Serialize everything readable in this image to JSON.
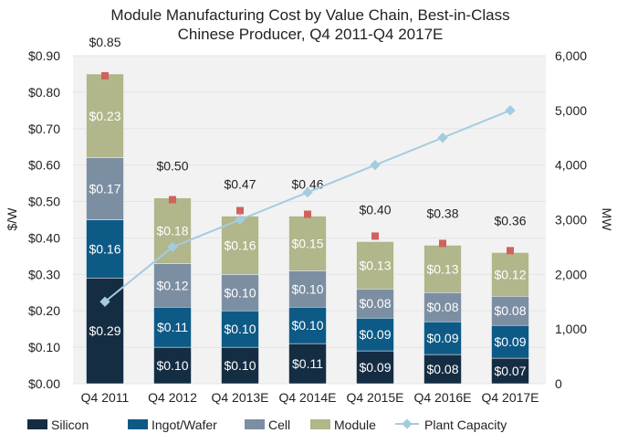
{
  "chart_data": {
    "type": "bar",
    "stacked": true,
    "title": "Module Manufacturing Cost by Value Chain, Best-in-Class Chinese Producer, Q4 2011-Q4 2017E",
    "title_lines": [
      "Module Manufacturing Cost by Value Chain, Best-in-Class",
      "Chinese Producer, Q4 2011-Q4 2017E"
    ],
    "categories": [
      "Q4 2011",
      "Q4 2012",
      "Q4 2013E",
      "Q4 2014E",
      "Q4 2015E",
      "Q4 2016E",
      "Q4 2017E"
    ],
    "ylabel": "$/W",
    "y2label": "MW",
    "ylim": [
      0,
      0.9
    ],
    "y2lim": [
      0,
      6000
    ],
    "yticks": [
      "$0.00",
      "$0.10",
      "$0.20",
      "$0.30",
      "$0.40",
      "$0.50",
      "$0.60",
      "$0.70",
      "$0.80",
      "$0.90"
    ],
    "y2ticks": [
      "0",
      "1,000",
      "2,000",
      "3,000",
      "4,000",
      "5,000",
      "6,000"
    ],
    "series": [
      {
        "name": "Silicon",
        "color": "#152d43",
        "values": [
          0.29,
          0.1,
          0.1,
          0.11,
          0.09,
          0.08,
          0.07
        ]
      },
      {
        "name": "Ingot/Wafer",
        "color": "#0e5a86",
        "values": [
          0.16,
          0.11,
          0.1,
          0.1,
          0.09,
          0.09,
          0.09
        ]
      },
      {
        "name": "Cell",
        "color": "#7c8ea2",
        "values": [
          0.17,
          0.12,
          0.1,
          0.1,
          0.08,
          0.08,
          0.08
        ]
      },
      {
        "name": "Module",
        "color": "#b1b68b",
        "values": [
          0.23,
          0.18,
          0.16,
          0.15,
          0.13,
          0.13,
          0.12
        ]
      }
    ],
    "totals": [
      0.85,
      0.5,
      0.47,
      0.46,
      0.4,
      0.38,
      0.36
    ],
    "total_labels": [
      "$0.85",
      "$0.50",
      "$0.47",
      "$0.46",
      "$0.40",
      "$0.38",
      "$0.36"
    ],
    "line_series": {
      "name": "Plant Capacity",
      "axis": "right",
      "color": "#a5cbe0",
      "values": [
        1500,
        2500,
        3000,
        3500,
        4000,
        4500,
        5000
      ]
    },
    "total_marker_color": "#d0625c",
    "legend": "bottom",
    "grid": true
  }
}
